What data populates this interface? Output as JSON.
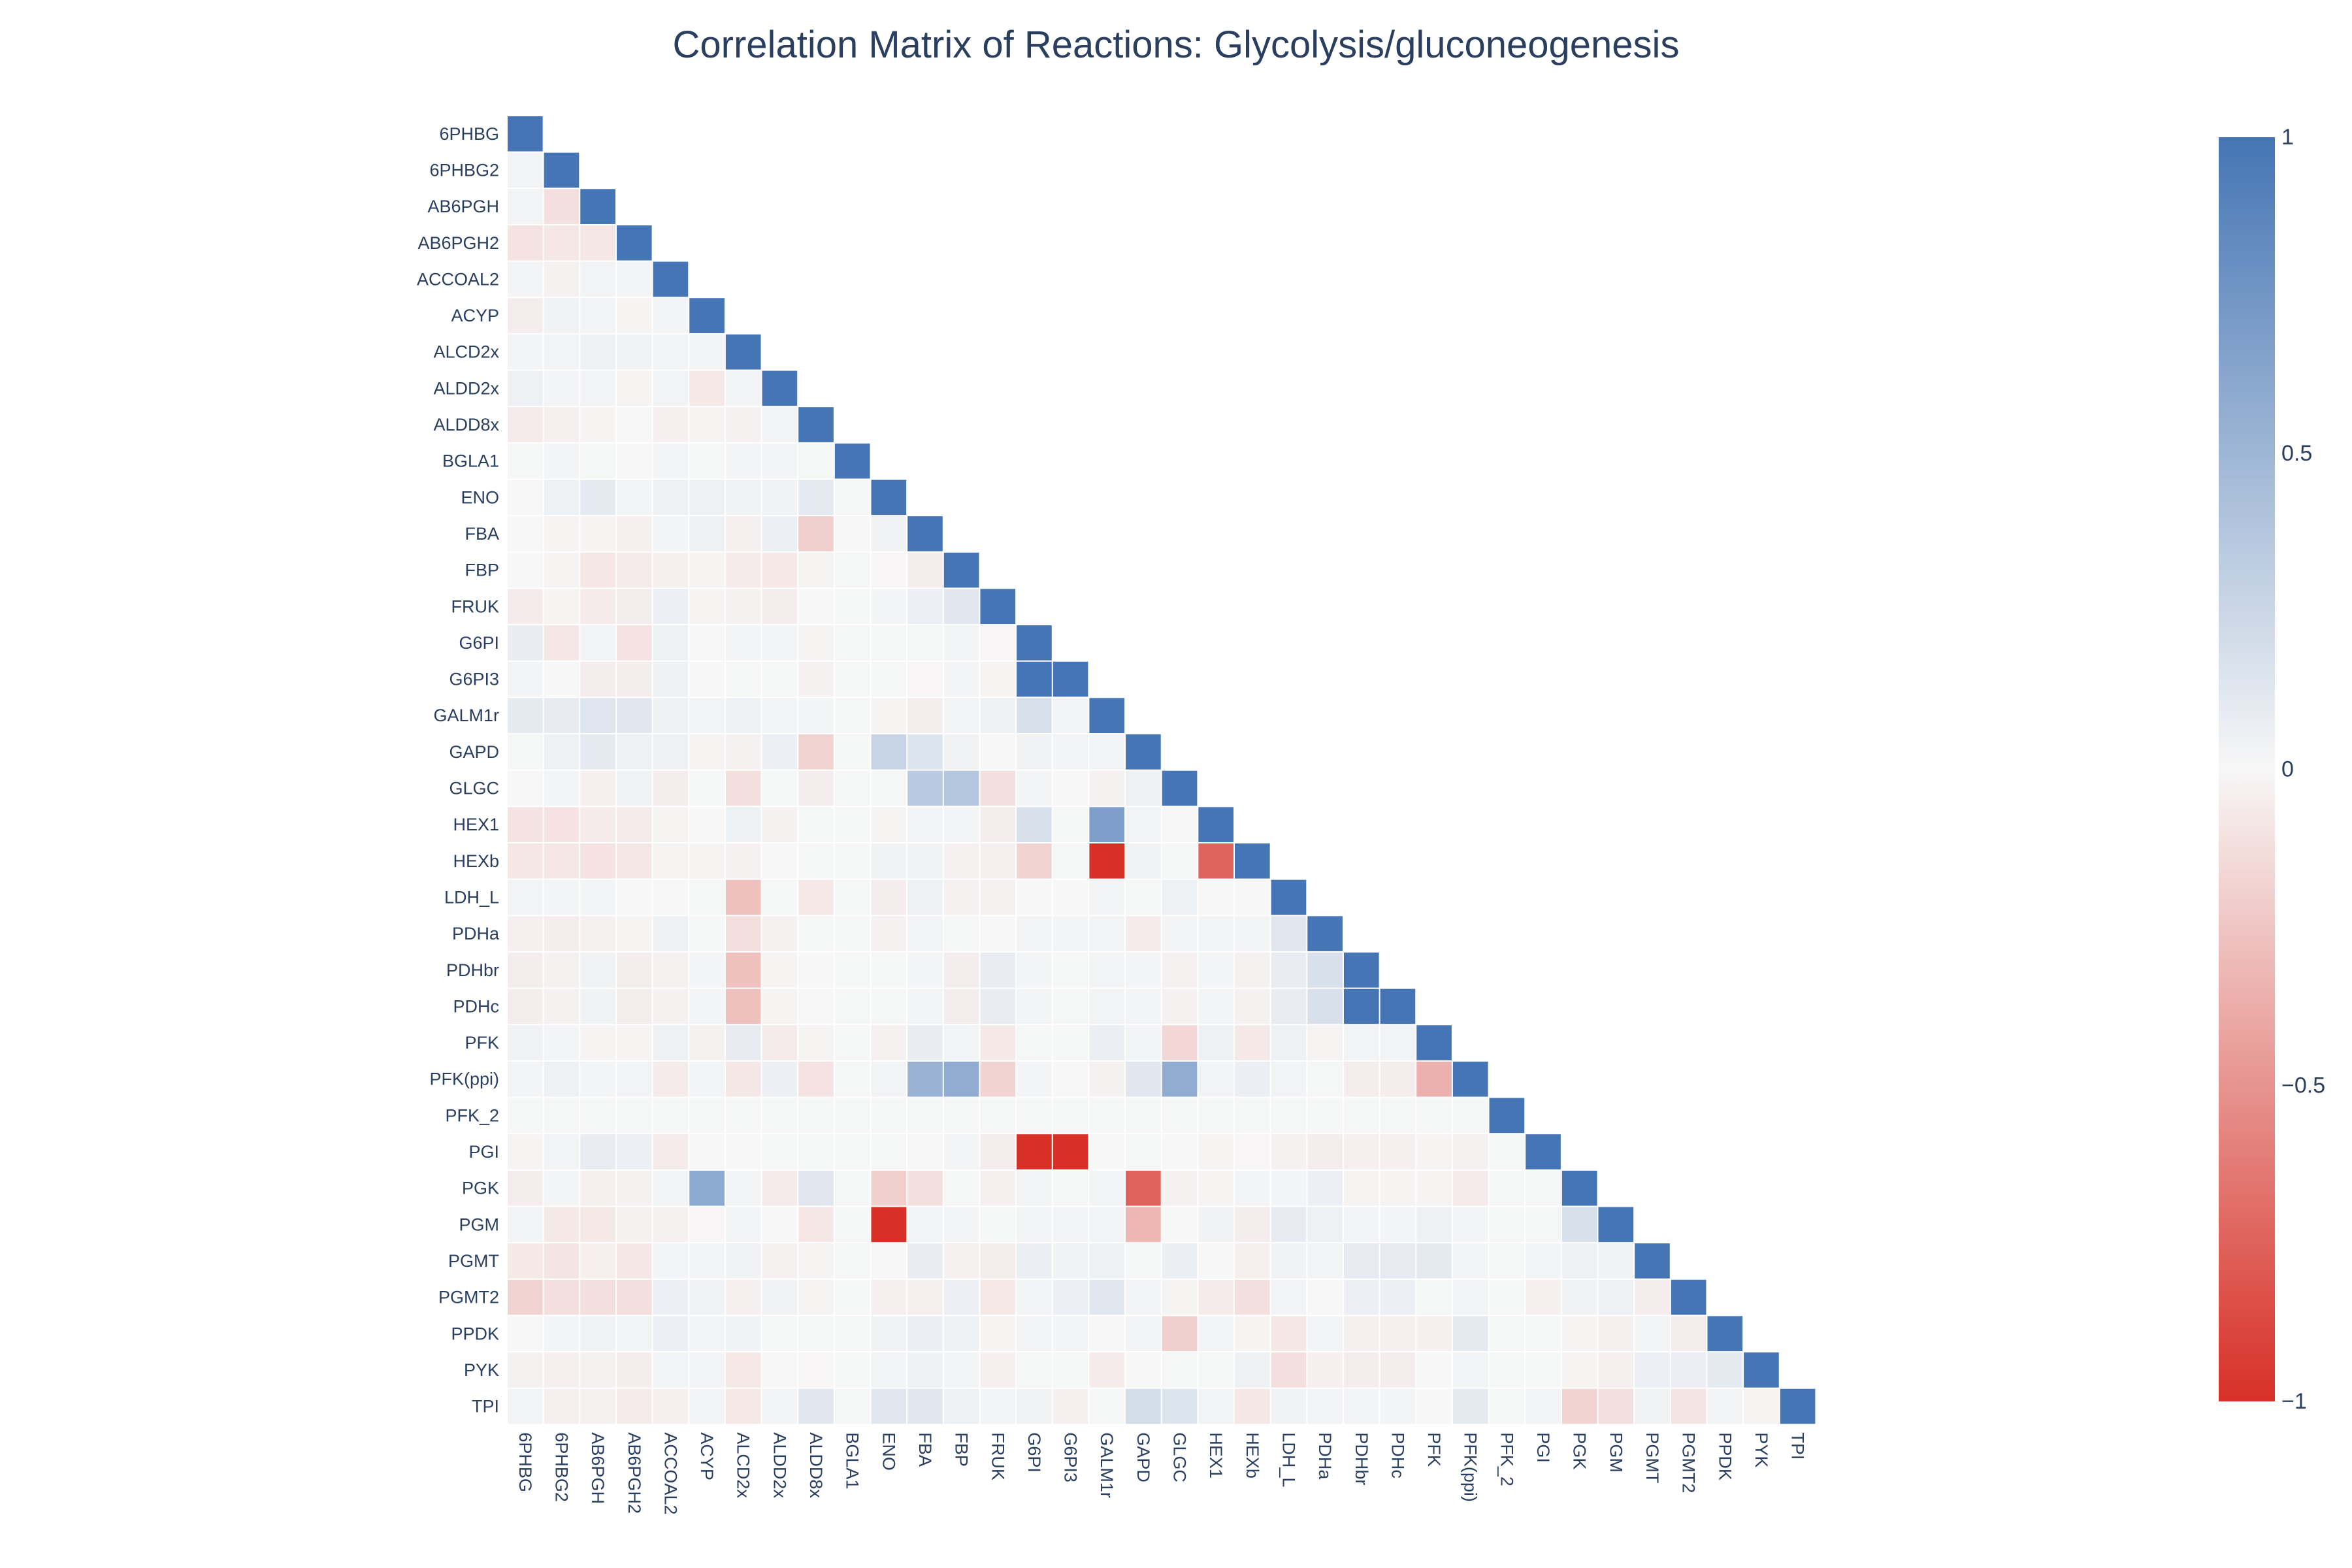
{
  "chart_data": {
    "type": "heatmap",
    "title": "Correlation Matrix of Reactions: Glycolysis/gluconeogenesis",
    "categories": [
      "6PHBG",
      "6PHBG2",
      "AB6PGH",
      "AB6PGH2",
      "ACCOAL2",
      "ACYP",
      "ALCD2x",
      "ALDD2x",
      "ALDD8x",
      "BGLA1",
      "ENO",
      "FBA",
      "FBP",
      "FRUK",
      "G6PI",
      "G6PI3",
      "GALM1r",
      "GAPD",
      "GLGC",
      "HEX1",
      "HEXb",
      "LDH_L",
      "PDHa",
      "PDHbr",
      "PDHc",
      "PFK",
      "PFK(ppi)",
      "PFK_2",
      "PGI",
      "PGK",
      "PGM",
      "PGMT",
      "PGMT2",
      "PPDK",
      "PYK",
      "TPI"
    ],
    "layout": "lower-triangle",
    "colorscale": [
      [
        0,
        "#d73027"
      ],
      [
        0.5,
        "#f7f7f7"
      ],
      [
        1,
        "#4575b4"
      ]
    ],
    "zmin": -1,
    "zmax": 1,
    "colorbar_ticks": [
      {
        "value": 1,
        "label": "1"
      },
      {
        "value": 0.5,
        "label": "0.5"
      },
      {
        "value": 0,
        "label": "0"
      },
      {
        "value": -0.5,
        "label": "−0.5"
      },
      {
        "value": -1,
        "label": "−1"
      }
    ],
    "values": [
      [
        1
      ],
      [
        0.02,
        1
      ],
      [
        0.02,
        -0.12,
        1
      ],
      [
        -0.1,
        -0.08,
        -0.08,
        1
      ],
      [
        0.02,
        -0.03,
        0.03,
        0.02,
        1
      ],
      [
        -0.05,
        0.04,
        0.03,
        -0.02,
        0.02,
        1
      ],
      [
        0.02,
        0.03,
        0.05,
        0.04,
        0.02,
        0.02,
        1
      ],
      [
        0.05,
        0.02,
        0.03,
        -0.02,
        0.03,
        -0.07,
        0.03,
        1
      ],
      [
        -0.06,
        -0.04,
        -0.02,
        0,
        -0.04,
        -0.02,
        -0.03,
        0.03,
        1
      ],
      [
        0.01,
        0.02,
        0.01,
        0,
        0.02,
        0.01,
        0.02,
        0.02,
        0.01,
        1
      ],
      [
        0,
        0.05,
        0.1,
        0.02,
        0.05,
        0.05,
        0.04,
        0.04,
        0.1,
        0.01,
        1
      ],
      [
        0,
        -0.02,
        -0.02,
        -0.04,
        0.02,
        0.05,
        -0.04,
        0.06,
        -0.2,
        0,
        0.04,
        1
      ],
      [
        0,
        -0.02,
        -0.08,
        -0.06,
        -0.04,
        -0.02,
        -0.06,
        -0.07,
        -0.02,
        0.01,
        -0.01,
        -0.05,
        1
      ],
      [
        -0.06,
        -0.02,
        -0.06,
        -0.05,
        0.06,
        -0.02,
        -0.03,
        -0.05,
        0,
        0.01,
        0.02,
        0.06,
        0.12,
        1
      ],
      [
        0.08,
        -0.08,
        0.03,
        -0.1,
        0.05,
        0,
        0.02,
        0.02,
        -0.02,
        0.01,
        0.01,
        0.01,
        0.02,
        -0.01,
        1
      ],
      [
        0.02,
        0,
        -0.05,
        -0.05,
        0.05,
        0,
        0.01,
        0.01,
        -0.03,
        0.01,
        0.01,
        -0.01,
        0.02,
        -0.02,
        1,
        1
      ],
      [
        0.1,
        0.09,
        0.14,
        0.12,
        0.05,
        0.03,
        0.05,
        0.02,
        0.02,
        0.01,
        -0.02,
        -0.05,
        0.03,
        0.05,
        0.18,
        0.02,
        1
      ],
      [
        0.01,
        0.05,
        0.1,
        0.05,
        0.05,
        -0.02,
        -0.03,
        0.06,
        -0.18,
        0.01,
        0.27,
        0.15,
        0.04,
        0,
        0.04,
        0.02,
        0.02,
        1
      ],
      [
        0,
        0.02,
        -0.04,
        0.04,
        -0.05,
        0.01,
        -0.12,
        0.01,
        -0.05,
        0.01,
        0.01,
        0.35,
        0.38,
        -0.12,
        0.02,
        0,
        -0.03,
        0.05,
        1
      ],
      [
        -0.1,
        -0.1,
        -0.06,
        -0.06,
        -0.02,
        0,
        0.05,
        -0.03,
        0.01,
        0.01,
        -0.02,
        0.03,
        0.02,
        -0.05,
        0.18,
        0.01,
        0.68,
        0.03,
        0,
        1
      ],
      [
        -0.08,
        -0.08,
        -0.1,
        -0.08,
        -0.02,
        -0.02,
        -0.03,
        0,
        0.01,
        0.01,
        0.04,
        0.04,
        -0.03,
        -0.04,
        -0.18,
        0.01,
        -1,
        0.04,
        0.01,
        -0.74,
        1
      ],
      [
        0.03,
        0.02,
        0.02,
        0,
        0,
        0.01,
        -0.27,
        0.01,
        -0.07,
        0.01,
        -0.05,
        0.05,
        -0.03,
        -0.03,
        0,
        0,
        0.02,
        0.01,
        0.05,
        0,
        0,
        1
      ],
      [
        -0.04,
        -0.05,
        -0.03,
        -0.02,
        0.05,
        0.01,
        -0.12,
        -0.03,
        0.01,
        0.01,
        -0.03,
        0.03,
        0.01,
        0,
        0.03,
        0.02,
        0.03,
        -0.06,
        0.02,
        0.03,
        0.02,
        0.12,
        1
      ],
      [
        -0.05,
        -0.03,
        0.04,
        -0.05,
        -0.03,
        0.02,
        -0.27,
        -0.02,
        0,
        0.01,
        0.01,
        0.02,
        -0.05,
        0.08,
        0.02,
        0.01,
        0.03,
        0.02,
        -0.03,
        0.02,
        -0.03,
        0.08,
        0.18,
        1
      ],
      [
        -0.05,
        -0.03,
        0.04,
        -0.05,
        -0.03,
        0.02,
        -0.27,
        -0.02,
        0,
        0.01,
        0.01,
        0.02,
        -0.05,
        0.08,
        0.02,
        0.01,
        0.03,
        0.02,
        -0.03,
        0.02,
        -0.03,
        0.08,
        0.18,
        1,
        1
      ],
      [
        0.04,
        0.02,
        -0.02,
        -0.02,
        0.05,
        -0.03,
        0.09,
        -0.06,
        -0.02,
        0.01,
        -0.03,
        0.08,
        0.03,
        -0.07,
        0.01,
        0.01,
        0.07,
        0.02,
        -0.16,
        0.05,
        -0.07,
        0.05,
        -0.02,
        0.03,
        0.03,
        1
      ],
      [
        0.02,
        0.05,
        0.02,
        0.03,
        -0.06,
        0.02,
        -0.08,
        0.06,
        -0.1,
        0.01,
        0.03,
        0.52,
        0.58,
        -0.18,
        0.02,
        0,
        -0.03,
        0.12,
        0.58,
        0.03,
        0.07,
        0.03,
        0.01,
        -0.05,
        -0.05,
        -0.35,
        1
      ],
      [
        0.01,
        0.01,
        0.01,
        0.01,
        0.01,
        0.01,
        0.01,
        0.01,
        0.01,
        0.01,
        0.01,
        0.01,
        0.01,
        0.01,
        0.01,
        0.01,
        0.01,
        0.01,
        0.01,
        0.01,
        0.01,
        0.01,
        0.01,
        0.01,
        0.01,
        0.01,
        0.01,
        1
      ],
      [
        -0.02,
        0.03,
        0.08,
        0.06,
        -0.06,
        0,
        0,
        0.01,
        0.01,
        0.01,
        0.01,
        0,
        0.02,
        -0.05,
        -1,
        -1,
        0,
        0.01,
        0,
        -0.02,
        -0.01,
        -0.03,
        -0.05,
        -0.04,
        -0.04,
        -0.02,
        -0.03,
        0.01,
        1
      ],
      [
        -0.05,
        0.02,
        -0.04,
        -0.03,
        0.03,
        0.6,
        0.02,
        -0.06,
        0.12,
        0.01,
        -0.2,
        -0.12,
        0.01,
        -0.04,
        0.03,
        0.01,
        0.02,
        -0.75,
        -0.03,
        -0.02,
        0.02,
        0.02,
        0.06,
        -0.02,
        -0.02,
        -0.02,
        -0.06,
        0.01,
        0.01,
        1
      ],
      [
        0.02,
        -0.07,
        -0.07,
        -0.03,
        -0.03,
        -0.01,
        0.02,
        0,
        -0.08,
        0.01,
        -1,
        0.03,
        0.02,
        0.01,
        0.02,
        0.02,
        0.03,
        -0.32,
        0,
        0.04,
        -0.05,
        0.09,
        0.05,
        0.02,
        0.02,
        0.05,
        0.02,
        0.01,
        0.01,
        0.18,
        1
      ],
      [
        -0.07,
        -0.09,
        -0.04,
        -0.08,
        0.02,
        0.03,
        0.04,
        -0.03,
        -0.02,
        0.01,
        0,
        0.08,
        -0.03,
        -0.05,
        0.07,
        0.04,
        0.05,
        0.01,
        0.07,
        0,
        -0.04,
        0.04,
        0.03,
        0.09,
        0.09,
        0.1,
        0.02,
        0.01,
        0.02,
        0.05,
        0.04,
        1
      ],
      [
        -0.18,
        -0.12,
        -0.12,
        -0.12,
        0.06,
        0.04,
        -0.04,
        0.04,
        -0.02,
        0.01,
        -0.04,
        -0.04,
        0.06,
        -0.07,
        0.02,
        0.06,
        0.12,
        0.03,
        -0.02,
        -0.06,
        -0.12,
        0.03,
        0,
        0.06,
        0.06,
        0.01,
        0.03,
        0.01,
        -0.04,
        0.04,
        0.05,
        -0.05,
        1
      ],
      [
        0,
        0.02,
        0.04,
        0.03,
        0.06,
        0.02,
        0.04,
        0.01,
        0.01,
        0.01,
        0.04,
        0.07,
        0.05,
        -0.02,
        0.03,
        0.02,
        0,
        0.03,
        -0.2,
        0.02,
        -0.02,
        -0.08,
        0.02,
        -0.04,
        -0.04,
        -0.04,
        0.1,
        0.01,
        0.01,
        -0.02,
        -0.04,
        0.03,
        -0.05,
        1
      ],
      [
        -0.03,
        -0.04,
        -0.03,
        -0.05,
        0.02,
        0.02,
        -0.07,
        0,
        -0.01,
        0.01,
        0.03,
        0.05,
        0.02,
        -0.04,
        0.01,
        0.01,
        -0.06,
        0,
        0.01,
        0.01,
        0.05,
        -0.12,
        -0.04,
        -0.05,
        -0.05,
        0,
        0.03,
        0.01,
        0.01,
        -0.02,
        -0.04,
        0.06,
        0.07,
        0.1,
        1
      ],
      [
        0.02,
        -0.04,
        -0.03,
        -0.06,
        -0.04,
        0.02,
        -0.07,
        0.02,
        0.12,
        0.01,
        0.12,
        0.12,
        0.05,
        0.02,
        0.04,
        -0.04,
        0.01,
        0.2,
        0.15,
        0.03,
        -0.08,
        0.04,
        0.02,
        0.02,
        0.02,
        0,
        0.1,
        0.01,
        0.02,
        -0.18,
        -0.12,
        0.04,
        -0.09,
        0.02,
        -0.02,
        1
      ]
    ]
  }
}
